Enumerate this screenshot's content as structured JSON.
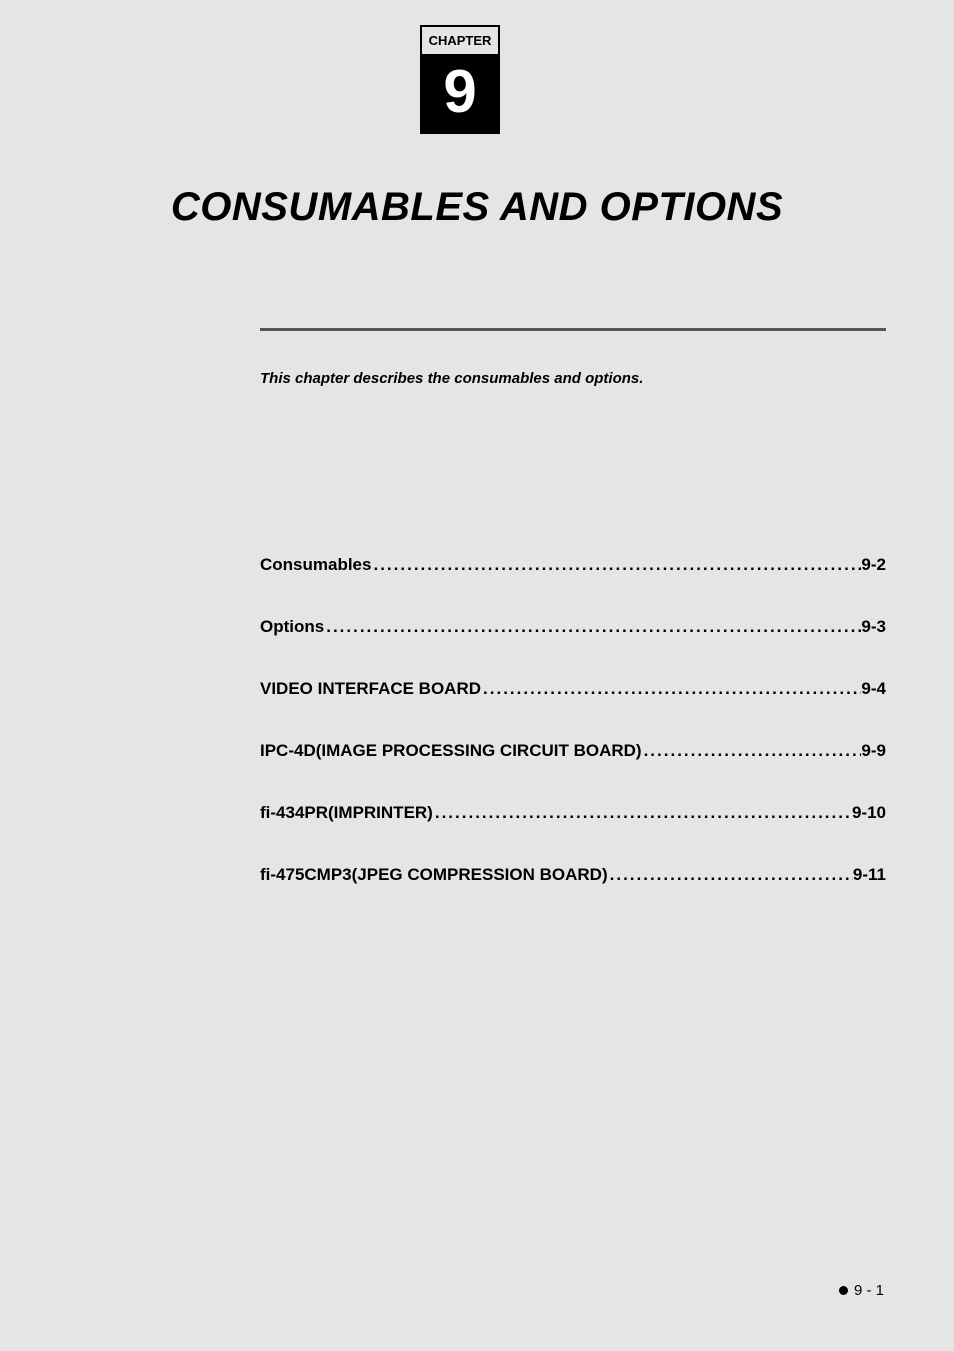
{
  "chapter": {
    "label": "CHAPTER",
    "number": "9"
  },
  "title": "CONSUMABLES AND OPTIONS",
  "description": "This chapter describes the consumables and options.",
  "toc": [
    {
      "label": "Consumables",
      "page": "9-2"
    },
    {
      "label": "Options",
      "page": "9-3"
    },
    {
      "label": "VIDEO INTERFACE BOARD",
      "page": "9-4"
    },
    {
      "label": "IPC-4D(IMAGE PROCESSING CIRCUIT BOARD)",
      "page": "9-9"
    },
    {
      "label": "fi-434PR(IMPRINTER)",
      "page": "9-10"
    },
    {
      "label": "fi-475CMP3(JPEG COMPRESSION BOARD)",
      "page": "9-11"
    }
  ],
  "footer": {
    "page": "9 - 1"
  },
  "styles": {
    "background_color": "#e5e5e5",
    "text_color": "#000000",
    "badge_bg": "#000000",
    "badge_fg": "#ffffff",
    "title_fontsize": 40,
    "toc_fontsize": 17,
    "desc_fontsize": 15
  }
}
